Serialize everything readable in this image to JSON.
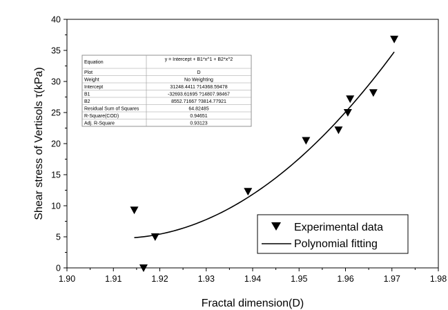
{
  "chart_data": {
    "type": "scatter",
    "xlabel": "Fractal dimension(D)",
    "ylabel": "Shear stress of Vertisols τ(kPa)",
    "xlim": [
      1.9,
      1.98
    ],
    "ylim": [
      0,
      40
    ],
    "xticks": [
      "1.90",
      "1.91",
      "1.92",
      "1.93",
      "1.94",
      "1.95",
      "1.96",
      "1.97",
      "1.98"
    ],
    "yticks": [
      "0",
      "5",
      "10",
      "15",
      "20",
      "25",
      "30",
      "35",
      "40"
    ],
    "grid": false,
    "legend_position": "bottom-right",
    "series": [
      {
        "name": "Experimental data",
        "kind": "scatter",
        "marker": "down-triangle",
        "x": [
          1.9145,
          1.9165,
          1.919,
          1.939,
          1.9515,
          1.9585,
          1.9605,
          1.961,
          1.966,
          1.9705
        ],
        "y": [
          9.3,
          0.0,
          5.0,
          12.3,
          20.5,
          22.2,
          25.0,
          27.2,
          28.2,
          36.8
        ]
      },
      {
        "name": "Polynomial fitting",
        "kind": "line",
        "x_range": [
          1.9145,
          1.9705
        ],
        "coefficients": {
          "intercept": 31248.4411,
          "b1": -32693.61695,
          "b2": 8552.71667
        }
      }
    ],
    "stats_table": {
      "rows": [
        [
          "Equation",
          "y = Intercept + B1*x^1 + B2*x^2"
        ],
        [
          "Plot",
          "D"
        ],
        [
          "Weight",
          "No Weighting"
        ],
        [
          "Intercept",
          "31248.4411 ?14368.59478"
        ],
        [
          "B1",
          "-32693.61695 ?14807.98467"
        ],
        [
          "B2",
          "8552.71667 ?3814.77921"
        ],
        [
          "Residual Sum of Squares",
          "64.82485"
        ],
        [
          "R-Square(COD)",
          "0.94651"
        ],
        [
          "Adj. R-Square",
          "0.93123"
        ]
      ]
    }
  }
}
